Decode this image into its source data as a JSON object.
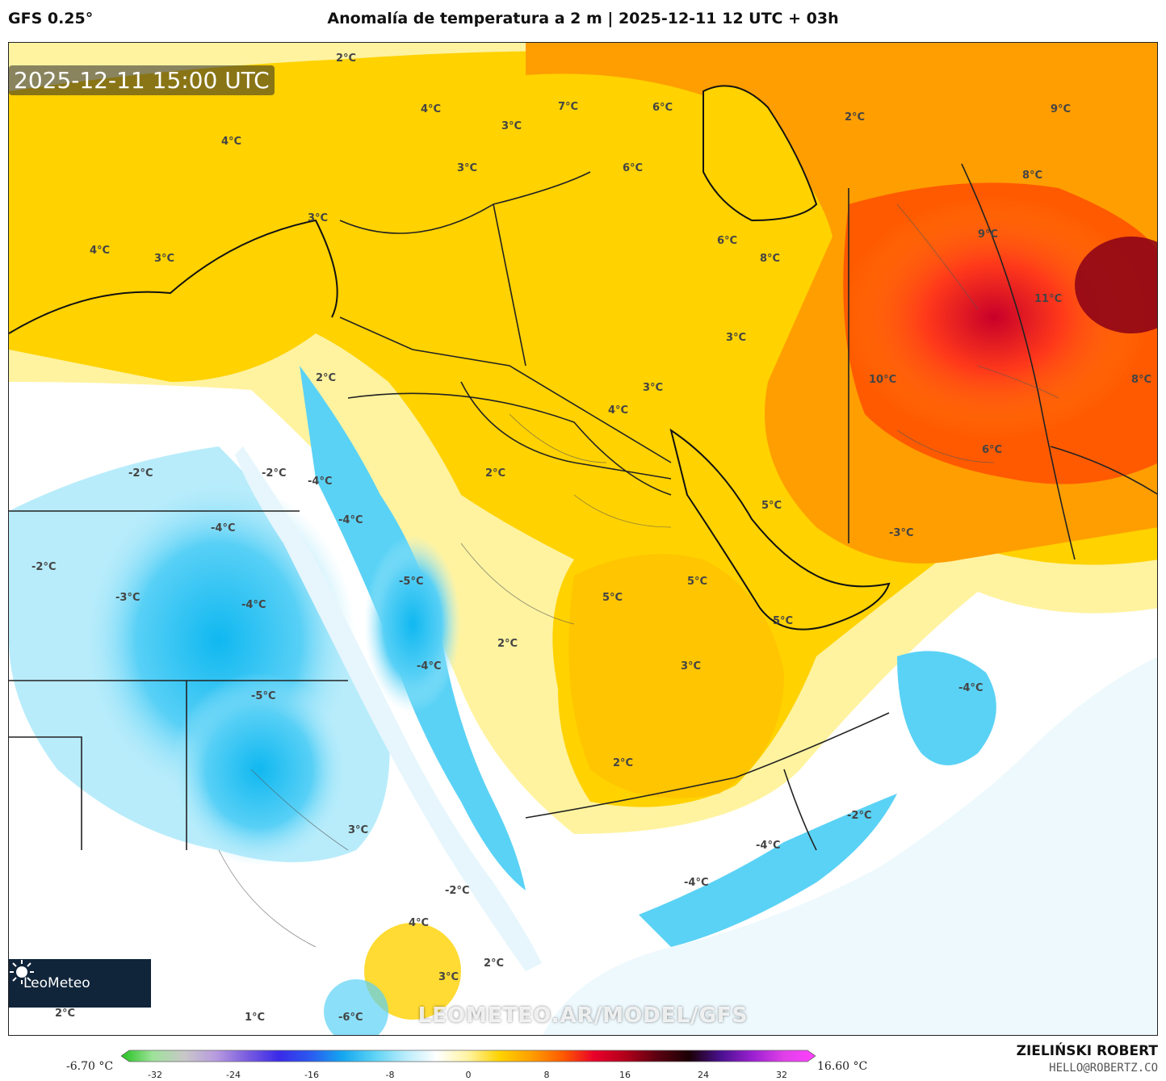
{
  "header": {
    "model": "GFS 0.25°",
    "title": "Anomalía de temperatura a 2 m | 2025-12-11 12 UTC + 03h"
  },
  "map": {
    "valid_time": "2025-12-11 15:00 UTC",
    "watermark": "LEOMETEO.AR/MODEL/GFS",
    "logo": "LeoMeteo",
    "labels": [
      {
        "text": "2°C"
      },
      {
        "text": "4°C"
      },
      {
        "text": "4°C"
      },
      {
        "text": "3°C"
      },
      {
        "text": "3°C"
      },
      {
        "text": "3°C"
      },
      {
        "text": "4°C"
      },
      {
        "text": "3°C"
      },
      {
        "text": "7°C"
      },
      {
        "text": "6°C"
      },
      {
        "text": "6°C"
      },
      {
        "text": "6°C"
      },
      {
        "text": "8°C"
      },
      {
        "text": "2°C"
      },
      {
        "text": "9°C"
      },
      {
        "text": "8°C"
      },
      {
        "text": "9°C"
      },
      {
        "text": "11°C"
      },
      {
        "text": "10°C"
      },
      {
        "text": "8°C"
      },
      {
        "text": "6°C"
      },
      {
        "text": "5°C"
      },
      {
        "text": "3°C"
      },
      {
        "text": "3°C"
      },
      {
        "text": "4°C"
      },
      {
        "text": "2°C"
      },
      {
        "text": "-2°C"
      },
      {
        "text": "-2°C"
      },
      {
        "text": "-4°C"
      },
      {
        "text": "2°C"
      },
      {
        "text": "-4°C"
      },
      {
        "text": "-4°C"
      },
      {
        "text": "-2°C"
      },
      {
        "text": "-3°C"
      },
      {
        "text": "-4°C"
      },
      {
        "text": "-5°C"
      },
      {
        "text": "5°C"
      },
      {
        "text": "5°C"
      },
      {
        "text": "5°C"
      },
      {
        "text": "3°C"
      },
      {
        "text": "2°C"
      },
      {
        "text": "2°C"
      },
      {
        "text": "-4°C"
      },
      {
        "text": "-4°C"
      },
      {
        "text": "-5°C"
      },
      {
        "text": "3°C"
      },
      {
        "text": "-2°C"
      },
      {
        "text": "-4°C"
      },
      {
        "text": "-3°C"
      },
      {
        "text": "-4°C"
      },
      {
        "text": "-2°C"
      },
      {
        "text": "4°C"
      },
      {
        "text": "2°C"
      },
      {
        "text": "3°C"
      },
      {
        "text": "2°C"
      },
      {
        "text": "1°C"
      },
      {
        "text": "-6°C"
      }
    ]
  },
  "colorbar": {
    "min_label": "-6.70 °C",
    "max_label": "16.60 °C",
    "ticks": [
      "-32",
      "-24",
      "-16",
      "-8",
      "0",
      "8",
      "16",
      "24",
      "32"
    ],
    "stops": [
      "#22c21e",
      "#9ee29a",
      "#c8c8c8",
      "#b89be0",
      "#7a5ce0",
      "#3a2ae8",
      "#2a5af0",
      "#14a6f0",
      "#5ad2f5",
      "#b8ecfb",
      "#ffffff",
      "#fff3a0",
      "#ffd200",
      "#ff9e00",
      "#ff5a00",
      "#e8002a",
      "#b0001a",
      "#5a0010",
      "#1a0005",
      "#4a1090",
      "#9a20d0",
      "#e040e8",
      "#ff40ff"
    ]
  },
  "footer": {
    "author": "ZIELIŃSKI ROBERT",
    "email": "HELLO@ROBERTZ.CO"
  }
}
